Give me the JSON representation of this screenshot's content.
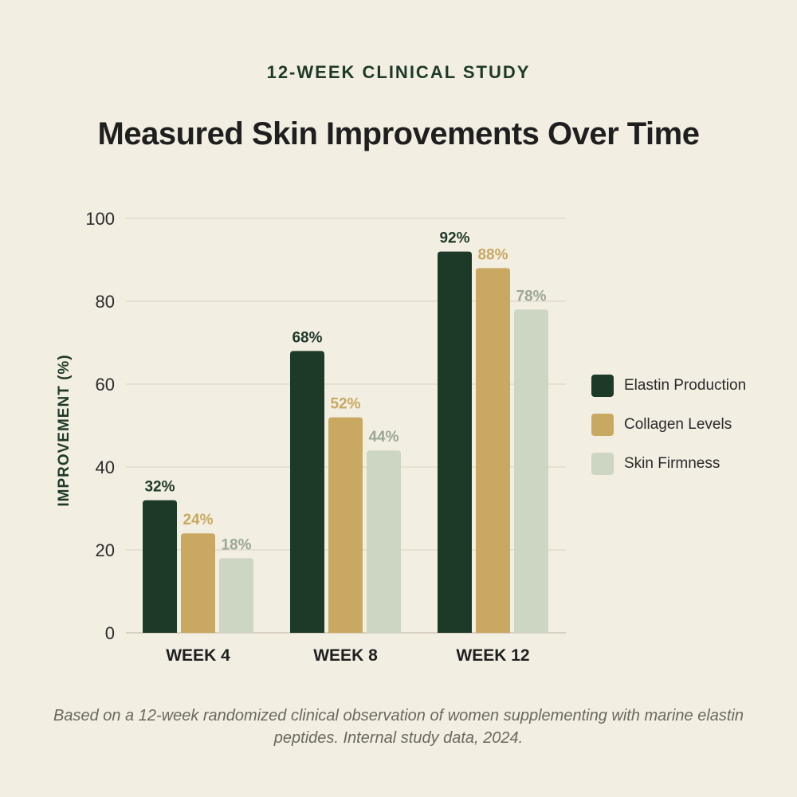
{
  "header": {
    "eyebrow": "12-WEEK CLINICAL STUDY",
    "title": "Measured Skin Improvements Over Time"
  },
  "footnote": "Based on a 12-week randomized clinical observation of women supplementing with marine elastin peptides. Internal study data, 2024.",
  "colors": {
    "background": "#f3eee2",
    "elastin": "#1d3a28",
    "collagen": "#c9a961",
    "firmness": "#cdd6c2",
    "firmness_label": "#9aa896",
    "grid": "#d9d2c3"
  },
  "chart_data": {
    "type": "bar",
    "categories": [
      "WEEK 4",
      "WEEK 8",
      "WEEK 12"
    ],
    "series": [
      {
        "name": "Elastin Production",
        "values": [
          32,
          68,
          92
        ],
        "labels": [
          "32%",
          "68%",
          "92%"
        ],
        "color": "#1d3a28",
        "label_color": "#1d3a28"
      },
      {
        "name": "Collagen Levels",
        "values": [
          24,
          52,
          88
        ],
        "labels": [
          "24%",
          "52%",
          "88%"
        ],
        "color": "#c9a961",
        "label_color": "#c9a961"
      },
      {
        "name": "Skin Firmness",
        "values": [
          18,
          44,
          78
        ],
        "labels": [
          "18%",
          "44%",
          "78%"
        ],
        "color": "#cdd6c2",
        "label_color": "#9aa896"
      }
    ],
    "ylabel": "IMPROVEMENT (%)",
    "ylim": [
      0,
      100
    ],
    "yticks": [
      0,
      20,
      40,
      60,
      80,
      100
    ],
    "grid": true,
    "legend_position": "right"
  }
}
